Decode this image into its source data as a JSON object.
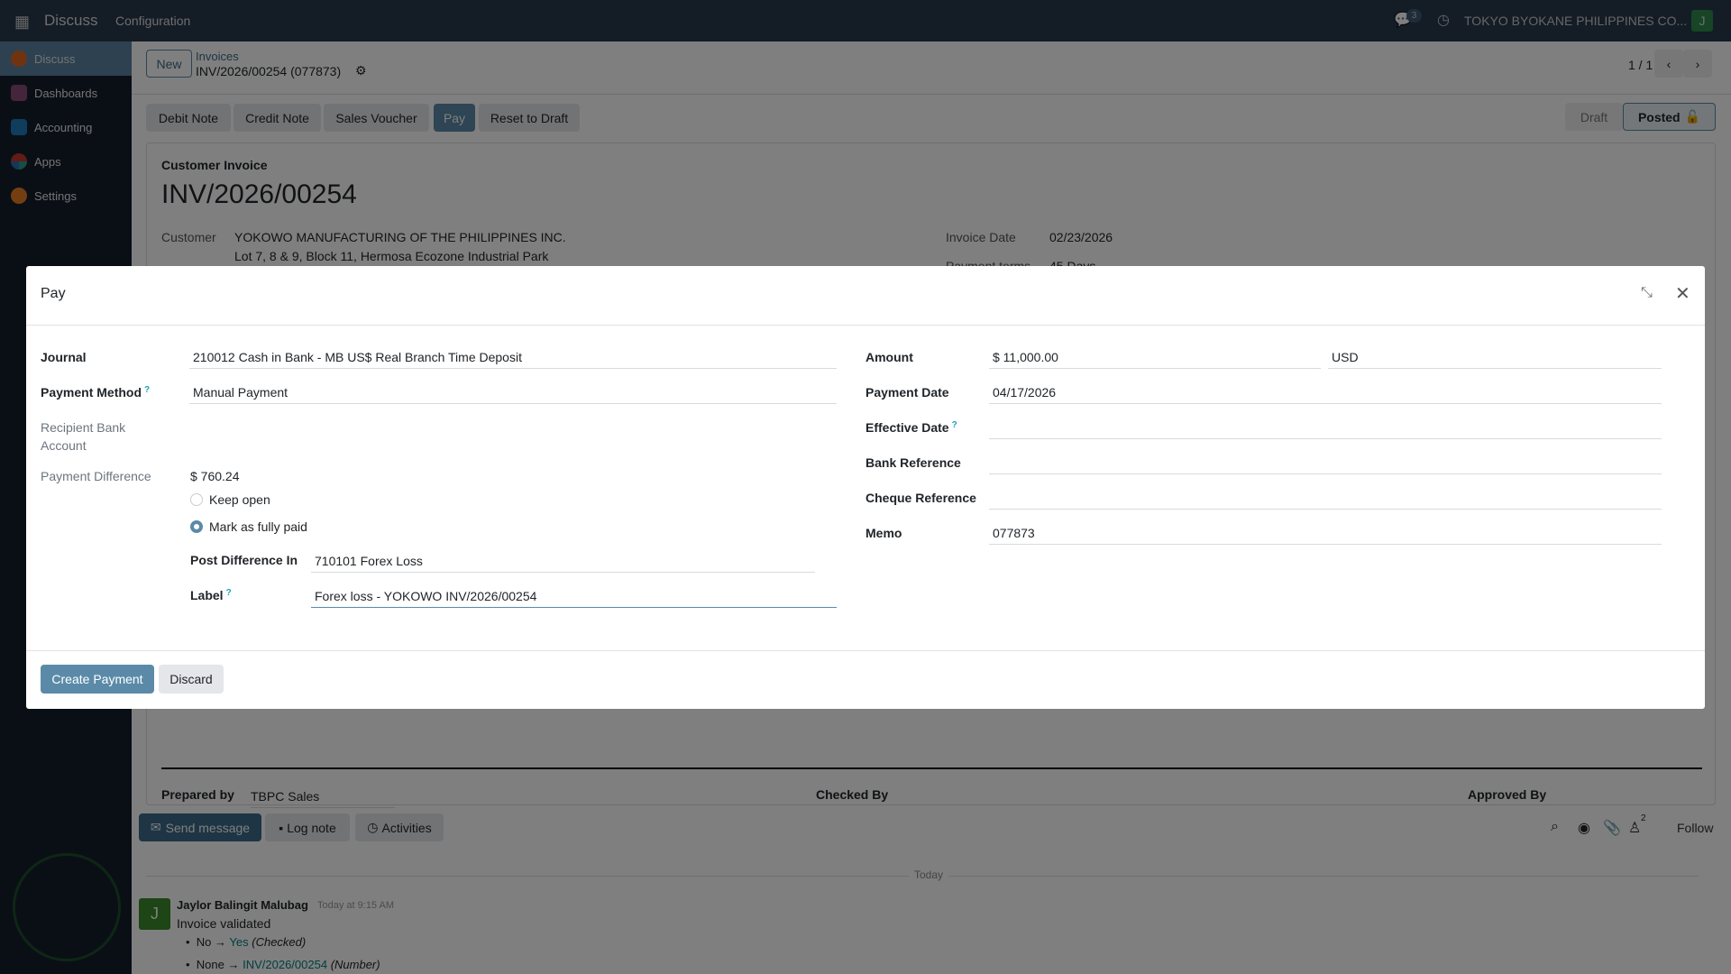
{
  "navbar": {
    "app_name": "Discuss",
    "menu": [
      "Configuration"
    ],
    "chat_badge": "3",
    "company": "TOKYO BYOKANE PHILIPPINES CO...",
    "user_initial": "J"
  },
  "sidebar": {
    "items": [
      {
        "label": "Discuss",
        "color": "#e0661f"
      },
      {
        "label": "Dashboards",
        "color": "#8a4b78"
      },
      {
        "label": "Accounting",
        "color": "#1f7ab8"
      },
      {
        "label": "Apps",
        "color": "#c0392b"
      },
      {
        "label": "Settings",
        "color": "#e67e22"
      }
    ]
  },
  "control": {
    "new_label": "New",
    "breadcrumb_parent": "Invoices",
    "breadcrumb_current": "INV/2026/00254 (077873)",
    "pager": "1 / 1"
  },
  "actions": [
    "Debit Note",
    "Credit Note",
    "Sales Voucher",
    "Pay",
    "Reset to Draft"
  ],
  "status": {
    "steps": [
      "Draft",
      "Posted"
    ],
    "current": "Posted"
  },
  "invoice": {
    "type": "Customer Invoice",
    "number": "INV/2026/00254",
    "customer_label": "Customer",
    "customer_name": "YOKOWO MANUFACTURING OF THE PHILIPPINES INC.",
    "customer_address": "Lot 7, 8 & 9, Block 11, Hermosa Ecozone Industrial Park",
    "invoice_date_label": "Invoice Date",
    "invoice_date": "02/23/2026",
    "payment_terms_label": "Payment terms",
    "payment_terms": "45 Days",
    "prepared_by_label": "Prepared by",
    "prepared_by": "TBPC Sales",
    "checked_by_label": "Checked By",
    "approved_by_label": "Approved By"
  },
  "dialog": {
    "title": "Pay",
    "journal_label": "Journal",
    "journal": "210012 Cash in Bank - MB US$ Real Branch Time Deposit",
    "payment_method_label": "Payment Method",
    "payment_method": "Manual Payment",
    "recipient_label_1": "Recipient Bank",
    "recipient_label_2": "Account",
    "difference_label": "Payment Difference",
    "difference": "$ 760.24",
    "keep_open": "Keep open",
    "mark_paid": "Mark as fully paid",
    "selected_option": "Mark as fully paid",
    "post_diff_label": "Post Difference In",
    "post_diff": "710101 Forex Loss",
    "label_label": "Label",
    "label_value": "Forex loss - YOKOWO INV/2026/00254",
    "amount_label": "Amount",
    "amount": "$ 11,000.00",
    "currency": "USD",
    "payment_date_label": "Payment Date",
    "payment_date": "04/17/2026",
    "effective_date_label": "Effective Date",
    "effective_date": "",
    "bank_ref_label": "Bank Reference",
    "bank_ref": "",
    "cheque_ref_label": "Cheque Reference",
    "cheque_ref": "",
    "memo_label": "Memo",
    "memo": "077873",
    "create_label": "Create Payment",
    "discard_label": "Discard",
    "help": "?"
  },
  "chatter": {
    "send_message": "Send message",
    "log_note": "Log note",
    "activities": "Activities",
    "followers_count": "2",
    "follow": "Follow",
    "today": "Today",
    "message": {
      "author": "Jaylor Balingit Malubag",
      "time": "Today at 9:15 AM",
      "body": "Invoice validated",
      "initial": "J",
      "changes": [
        {
          "old": "No",
          "new": "Yes",
          "field": "(Checked)"
        },
        {
          "old": "None",
          "new": "INV/2026/00254",
          "field": "(Number)"
        }
      ]
    }
  },
  "colors": {
    "primary": "#5b8aa8",
    "link": "#017e84",
    "avatar": "#3a8a2a"
  }
}
